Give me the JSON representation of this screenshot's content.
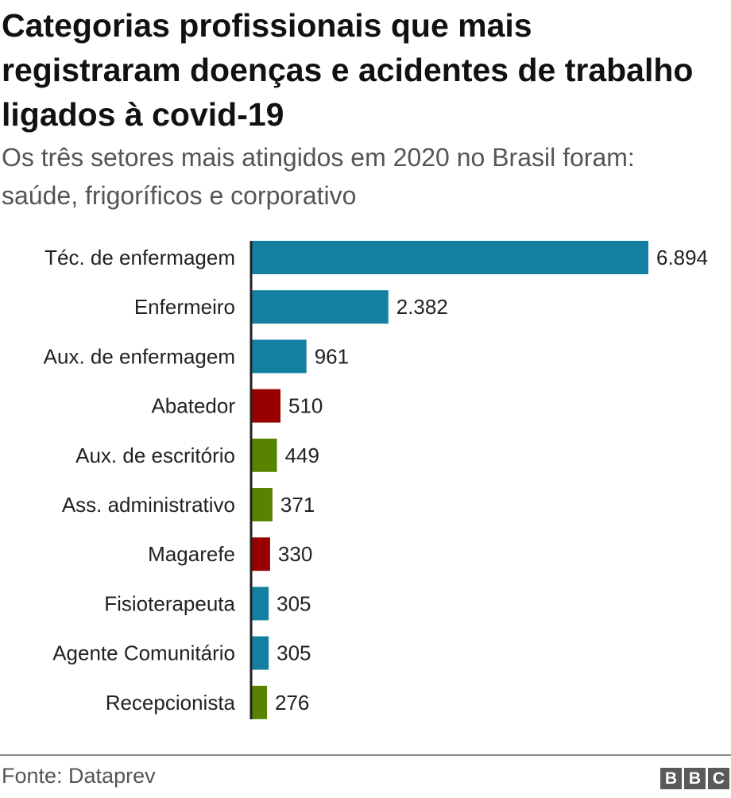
{
  "title": "Categorias profissionais que mais registraram doenças e acidentes de trabalho ligados à covid-19",
  "subtitle": "Os três setores mais atingidos em 2020 no Brasil foram: saúde, frigoríficos e corporativo",
  "source": "Fonte: Dataprev",
  "logo": [
    "B",
    "B",
    "C"
  ],
  "colors": {
    "saude": "#1380a1",
    "frigorificos": "#990000",
    "corporativo": "#588300",
    "axis": "#222222"
  },
  "chart_data": {
    "type": "bar",
    "orientation": "horizontal",
    "title": "Categorias profissionais que mais registraram doenças e acidentes de trabalho ligados à covid-19",
    "subtitle": "Os três setores mais atingidos em 2020 no Brasil foram: saúde, frigoríficos e corporativo",
    "categories": [
      "Téc. de enfermagem",
      "Enfermeiro",
      "Aux. de enfermagem",
      "Abatedor",
      "Aux. de escritório",
      "Ass. administrativo",
      "Magarefe",
      "Fisioterapeuta",
      "Agente Comunitário",
      "Recepcionista"
    ],
    "values": [
      6894,
      2382,
      961,
      510,
      449,
      371,
      330,
      305,
      305,
      276
    ],
    "value_labels": [
      "6.894",
      "2.382",
      "961",
      "510",
      "449",
      "371",
      "330",
      "305",
      "305",
      "276"
    ],
    "sectors": [
      "saude",
      "saude",
      "saude",
      "frigorificos",
      "corporativo",
      "corporativo",
      "frigorificos",
      "saude",
      "saude",
      "corporativo"
    ],
    "xlim": [
      0,
      6894
    ],
    "xlabel": "",
    "ylabel": "",
    "grid": false,
    "legend": "none"
  }
}
